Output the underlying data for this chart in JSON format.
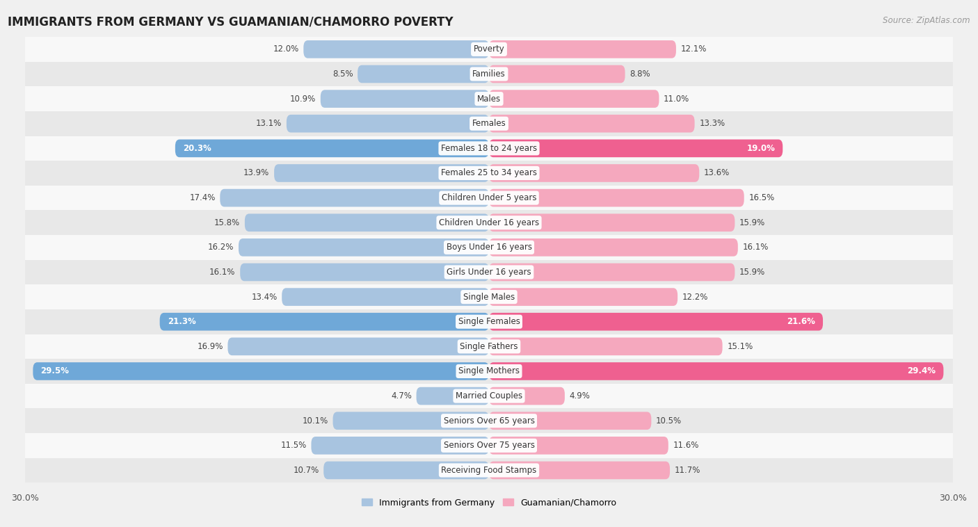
{
  "title": "IMMIGRANTS FROM GERMANY VS GUAMANIAN/CHAMORRO POVERTY",
  "source": "Source: ZipAtlas.com",
  "categories": [
    "Poverty",
    "Families",
    "Males",
    "Females",
    "Females 18 to 24 years",
    "Females 25 to 34 years",
    "Children Under 5 years",
    "Children Under 16 years",
    "Boys Under 16 years",
    "Girls Under 16 years",
    "Single Males",
    "Single Females",
    "Single Fathers",
    "Single Mothers",
    "Married Couples",
    "Seniors Over 65 years",
    "Seniors Over 75 years",
    "Receiving Food Stamps"
  ],
  "germany_values": [
    12.0,
    8.5,
    10.9,
    13.1,
    20.3,
    13.9,
    17.4,
    15.8,
    16.2,
    16.1,
    13.4,
    21.3,
    16.9,
    29.5,
    4.7,
    10.1,
    11.5,
    10.7
  ],
  "guamanian_values": [
    12.1,
    8.8,
    11.0,
    13.3,
    19.0,
    13.6,
    16.5,
    15.9,
    16.1,
    15.9,
    12.2,
    21.6,
    15.1,
    29.4,
    4.9,
    10.5,
    11.6,
    11.7
  ],
  "germany_color_normal": "#a8c4e0",
  "guamanian_color_normal": "#f5a8be",
  "germany_color_highlight": "#6fa8d8",
  "guamanian_color_highlight": "#ef6090",
  "highlight_rows": [
    4,
    11,
    13
  ],
  "axis_max": 30.0,
  "legend_germany": "Immigrants from Germany",
  "legend_guamanian": "Guamanian/Chamorro",
  "background_color": "#f0f0f0",
  "row_bg_even": "#f8f8f8",
  "row_bg_odd": "#e8e8e8"
}
